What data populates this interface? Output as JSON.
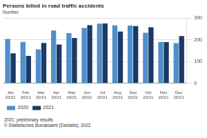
{
  "chart_data": {
    "type": "bar",
    "title": "Persons killed in road traffic accidents",
    "subtitle": "Number",
    "categories": [
      "Jan 20/21",
      "Feb 20/21",
      "Mar 20/21",
      "Apr 20/21",
      "May 20/21",
      "Jun 20/21",
      "Jul 20/21",
      "Aug 20/21",
      "Sep 20/21",
      "Oct 20/21",
      "Nov 20/21",
      "Dec 20/21"
    ],
    "series": [
      {
        "name": "2020",
        "color": "#4f8fcc",
        "values": [
          204,
          191,
          156,
          243,
          231,
          255,
          275,
          267,
          266,
          233,
          190,
          185
        ]
      },
      {
        "name": "2021",
        "color": "#1b3a66",
        "values": [
          138,
          126,
          186,
          179,
          209,
          268,
          276,
          238,
          264,
          258,
          190,
          218
        ]
      }
    ],
    "ylim": [
      0,
      300
    ],
    "yticks": [
      0,
      100,
      200,
      300
    ],
    "grid": true,
    "legend": "bottom-left",
    "annotations": [
      "2021: preliminary results",
      "© Statistisches Bundesamt (Destatis), 2022"
    ]
  }
}
